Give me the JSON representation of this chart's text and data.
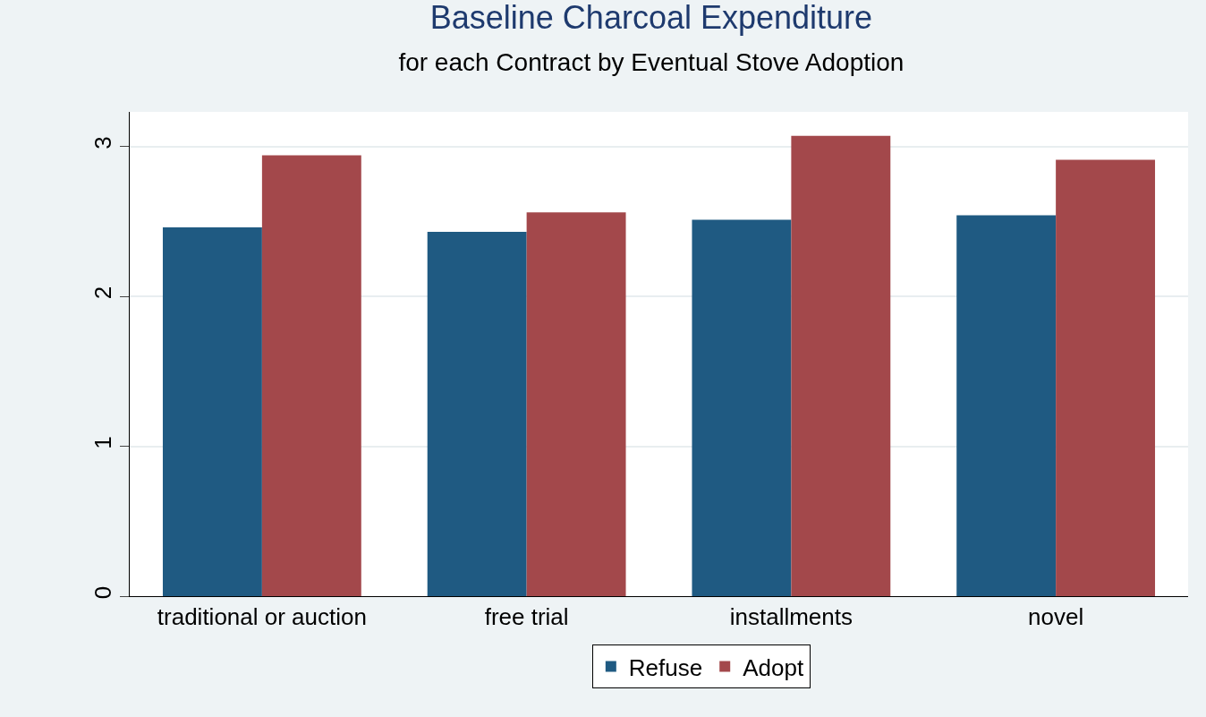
{
  "chart_data": {
    "type": "bar",
    "title": "Baseline Charcoal Expenditure",
    "subtitle": "for each Contract by Eventual Stove Adoption",
    "categories": [
      "traditional or auction",
      "free trial",
      "installments",
      "novel"
    ],
    "series": [
      {
        "name": "Refuse",
        "color": "#1f5a82",
        "values": [
          2.46,
          2.43,
          2.51,
          2.54
        ]
      },
      {
        "name": "Adopt",
        "color": "#a3484b",
        "values": [
          2.94,
          2.56,
          3.07,
          2.91
        ]
      }
    ],
    "ylim": [
      0,
      3.23
    ],
    "yticks": [
      0,
      1,
      2,
      3
    ],
    "grid": "y",
    "legend": "bottom"
  }
}
